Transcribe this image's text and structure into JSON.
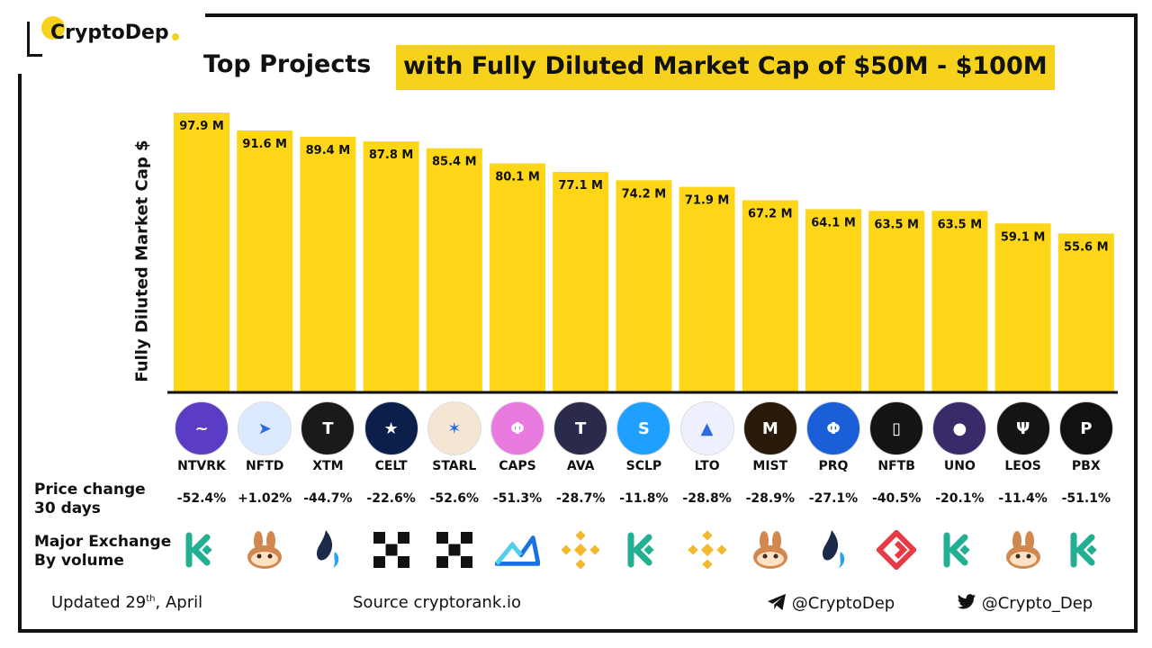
{
  "brand": {
    "name": "CryptoDep"
  },
  "title": {
    "part1": "Top Projects",
    "part2": "with Fully Diluted Market Cap of $50M - $100M"
  },
  "colors": {
    "bar": "#fcd617",
    "accent": "#f7d21d",
    "axis": "#111111"
  },
  "chart_data": {
    "type": "bar",
    "title": "Top Projects with Fully Diluted Market Cap of $50M - $100M",
    "ylabel": "Fully Diluted Market Cap $",
    "xlabel": "",
    "ylim": [
      0,
      100
    ],
    "grid": false,
    "categories": [
      "NTVRK",
      "NFTD",
      "XTM",
      "CELT",
      "STARL",
      "CAPS",
      "AVA",
      "SCLP",
      "LTO",
      "MIST",
      "PRQ",
      "NFTB",
      "UNO",
      "LEOS",
      "PBX"
    ],
    "values": [
      97.9,
      91.6,
      89.4,
      87.8,
      85.4,
      80.1,
      77.1,
      74.2,
      71.9,
      67.2,
      64.1,
      63.5,
      63.5,
      59.1,
      55.6
    ],
    "value_labels": [
      "97.9 M",
      "91.6 M",
      "89.4 M",
      "87.8 M",
      "85.4 M",
      "80.1 M",
      "77.1 M",
      "74.2 M",
      "71.9 M",
      "67.2 M",
      "64.1 M",
      "63.5 M",
      "63.5 M",
      "59.1 M",
      "55.6 M"
    ],
    "price_change_30d": [
      "-52.4%",
      "+1.02%",
      "-44.7%",
      "-22.6%",
      "-52.6%",
      "-51.3%",
      "-28.7%",
      "-11.8%",
      "-28.8%",
      "-28.9%",
      "-27.1%",
      "-40.5%",
      "-20.1%",
      "-11.4%",
      "-51.1%"
    ],
    "major_exchange_icons": [
      "kucoin-icon",
      "pancakeswap-icon",
      "huobi-icon",
      "okx-icon",
      "okx-icon",
      "mexc-icon",
      "binance-icon",
      "kucoin-icon",
      "binance-icon",
      "pancakeswap-icon",
      "huobi-icon",
      "gate-icon",
      "kucoin-icon",
      "pancakeswap-icon",
      "kucoin-icon"
    ]
  },
  "coins": [
    {
      "icon": "ntvrk-icon",
      "bg": "#5b3cc4"
    },
    {
      "icon": "nftd-icon",
      "bg": "#dbeaff"
    },
    {
      "icon": "xtm-icon",
      "bg": "#1a1a1a"
    },
    {
      "icon": "celt-icon",
      "bg": "#0b1f4a"
    },
    {
      "icon": "starl-icon",
      "bg": "#f5e6d3"
    },
    {
      "icon": "caps-icon",
      "bg": "#e87ae0"
    },
    {
      "icon": "ava-icon",
      "bg": "#2a2a4a"
    },
    {
      "icon": "sclp-icon",
      "bg": "#1fa0ff"
    },
    {
      "icon": "lto-icon",
      "bg": "#eef0ff"
    },
    {
      "icon": "mist-icon",
      "bg": "#2a1a0a"
    },
    {
      "icon": "prq-icon",
      "bg": "#1a5fd8"
    },
    {
      "icon": "nftb-icon",
      "bg": "#141414"
    },
    {
      "icon": "uno-icon",
      "bg": "#3a2a6a"
    },
    {
      "icon": "leos-icon",
      "bg": "#141414"
    },
    {
      "icon": "pbx-icon",
      "bg": "#111111"
    }
  ],
  "rows": {
    "price_label": "Price change\n30 days",
    "exchange_label": "Major Exchange\nBy volume"
  },
  "footer": {
    "updated_prefix": "Updated 29",
    "updated_sup": "th",
    "updated_suffix": ", April",
    "source": "Source  cryptorank.io",
    "telegram": "@CryptoDep",
    "twitter": "@Crypto_Dep"
  }
}
